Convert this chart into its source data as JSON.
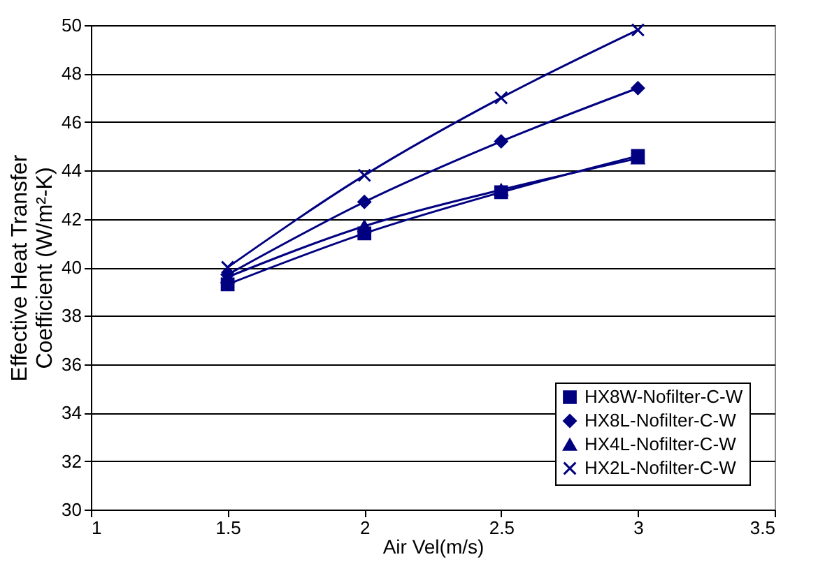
{
  "chart_data": {
    "type": "line",
    "xlabel": "Air Vel(m/s)",
    "ylabel": "Effective Heat Transfer\nCoefficient (W/m²-K)",
    "x": [
      1.5,
      2,
      2.5,
      3
    ],
    "series": [
      {
        "name": "HX8W-Nofilter-C-W",
        "color": "#000080",
        "marker": "square",
        "values": [
          39.3,
          41.4,
          43.1,
          44.6
        ]
      },
      {
        "name": "HX8L-Nofilter-C-W",
        "color": "#000080",
        "marker": "diamond",
        "values": [
          39.7,
          42.7,
          45.2,
          47.4
        ]
      },
      {
        "name": "HX4L-Nofilter-C-W",
        "color": "#000080",
        "marker": "triangle",
        "values": [
          39.6,
          41.7,
          43.2,
          44.5
        ]
      },
      {
        "name": "HX2L-Nofilter-C-W",
        "color": "#000080",
        "marker": "cross",
        "values": [
          40.0,
          43.8,
          47.0,
          49.8
        ]
      }
    ],
    "xlim": [
      1,
      3.5
    ],
    "xticks": [
      1,
      1.5,
      2,
      2.5,
      3,
      3.5
    ],
    "ylim": [
      30,
      50
    ],
    "yticks": [
      30,
      32,
      34,
      36,
      38,
      40,
      42,
      44,
      46,
      48,
      50
    ],
    "grid": "y",
    "legend": "bottom right",
    "line_style": "solid"
  }
}
